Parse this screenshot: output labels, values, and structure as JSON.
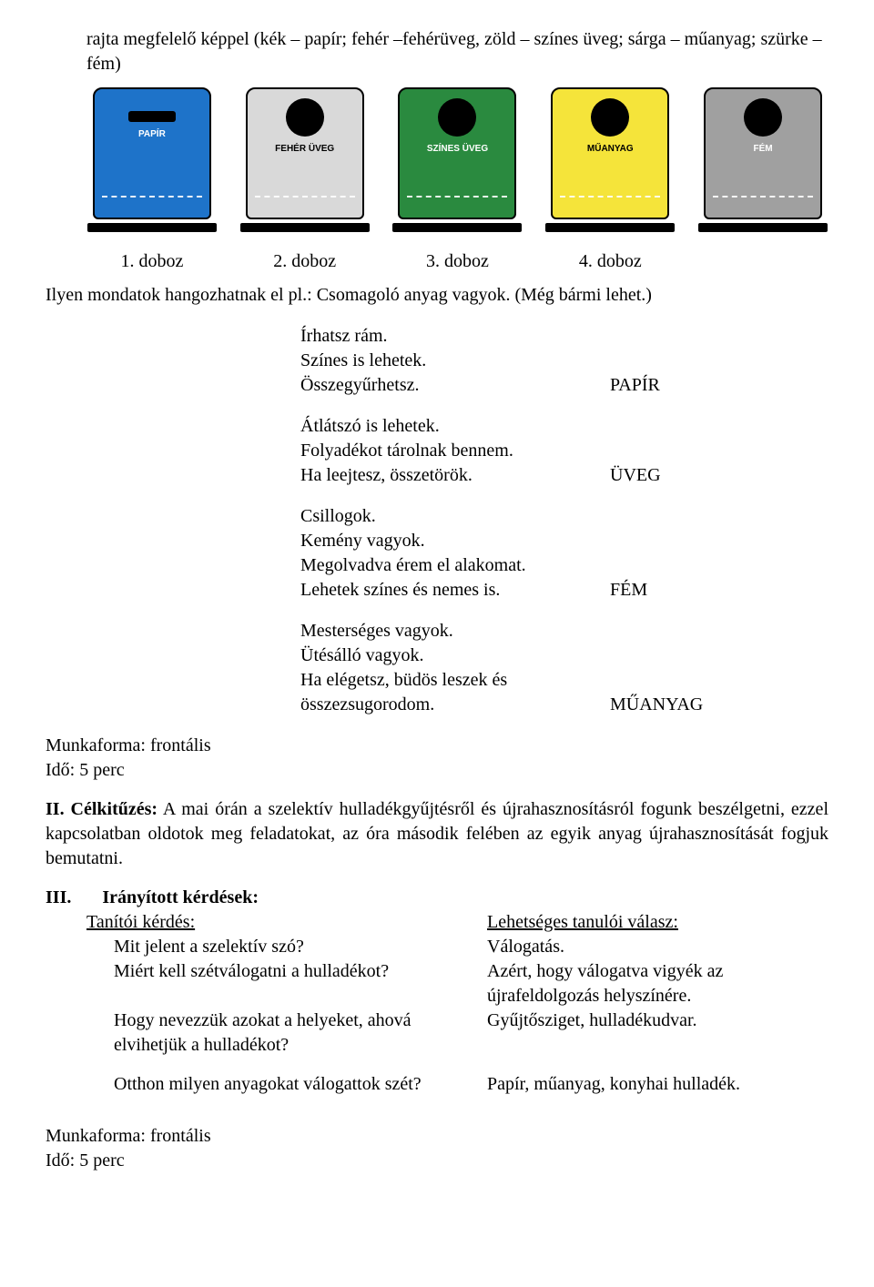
{
  "intro": "rajta megfelelő képpel (kék – papír; fehér –fehérüveg, zöld – színes üveg; sárga – műanyag; szürke – fém)",
  "bins": [
    {
      "label": "1. doboz",
      "color": "#1e73c9",
      "slot": "rect",
      "text": "PAPÍR",
      "textDark": false
    },
    {
      "label": "2. doboz",
      "color": "#d9d9d9",
      "slot": "round",
      "text": "FEHÉR\nÜVEG",
      "textDark": true
    },
    {
      "label": "3. doboz",
      "color": "#2a8a3f",
      "slot": "round",
      "text": "SZÍNES\nÜVEG",
      "textDark": false
    },
    {
      "label": "4. doboz",
      "color": "#f5e43a",
      "slot": "round",
      "text": "MŰANYAG",
      "textDark": true
    },
    {
      "label": "",
      "color": "#a0a0a0",
      "slot": "round",
      "text": "FÉM",
      "textDark": false
    }
  ],
  "sentencesLead": "Ilyen mondatok hangozhatnak el pl.: Csomagoló anyag vagyok. (Még bármi lehet.)",
  "riddles": [
    {
      "lines": [
        "Írhatsz rám.",
        "Színes is lehetek.",
        "Összegyűrhetsz."
      ],
      "answer": "PAPÍR"
    },
    {
      "lines": [
        "Átlátszó is lehetek.",
        "Folyadékot tárolnak bennem.",
        "Ha leejtesz, összetörök."
      ],
      "answer": "ÜVEG"
    },
    {
      "lines": [
        "Csillogok.",
        "Kemény vagyok.",
        "Megolvadva érem el alakomat.",
        "Lehetek színes és nemes is."
      ],
      "answer": "FÉM"
    },
    {
      "lines": [
        "Mesterséges vagyok.",
        "Ütésálló vagyok.",
        "Ha elégetsz, büdös leszek és",
        "összezsugorodom."
      ],
      "answer": "MŰANYAG"
    }
  ],
  "workform": {
    "label": "Munkaforma: frontális",
    "time": "Idő: 5 perc"
  },
  "section2": {
    "prefix": "II. Célkitűzés:",
    "text": " A mai órán a szelektív hulladékgyűjtésről és újrahasznosításról fogunk beszélgetni, ezzel kapcsolatban oldotok meg feladatokat, az óra második felében az egyik anyag újrahasznosítását fogjuk bemutatni."
  },
  "section3": {
    "prefix": "III.",
    "title": "Irányított kérdések:",
    "teacher_q_label": "Tanítói kérdés:",
    "student_a_label": "Lehetséges tanulói válasz:",
    "qa": [
      {
        "q": "Mit jelent a szelektív szó?",
        "a": "Válogatás."
      },
      {
        "q": "Miért kell szétválogatni a hulladékot?",
        "a": "Azért, hogy válogatva vigyék az újrafeldolgozás helyszínére."
      },
      {
        "q": "Hogy nevezzük azokat a helyeket, ahová elvihetjük a hulladékot?",
        "a": "Gyűjtősziget, hulladékudvar."
      },
      {
        "q": "Otthon milyen anyagokat válogattok szét?",
        "a": "Papír, műanyag, konyhai hulladék."
      }
    ]
  }
}
